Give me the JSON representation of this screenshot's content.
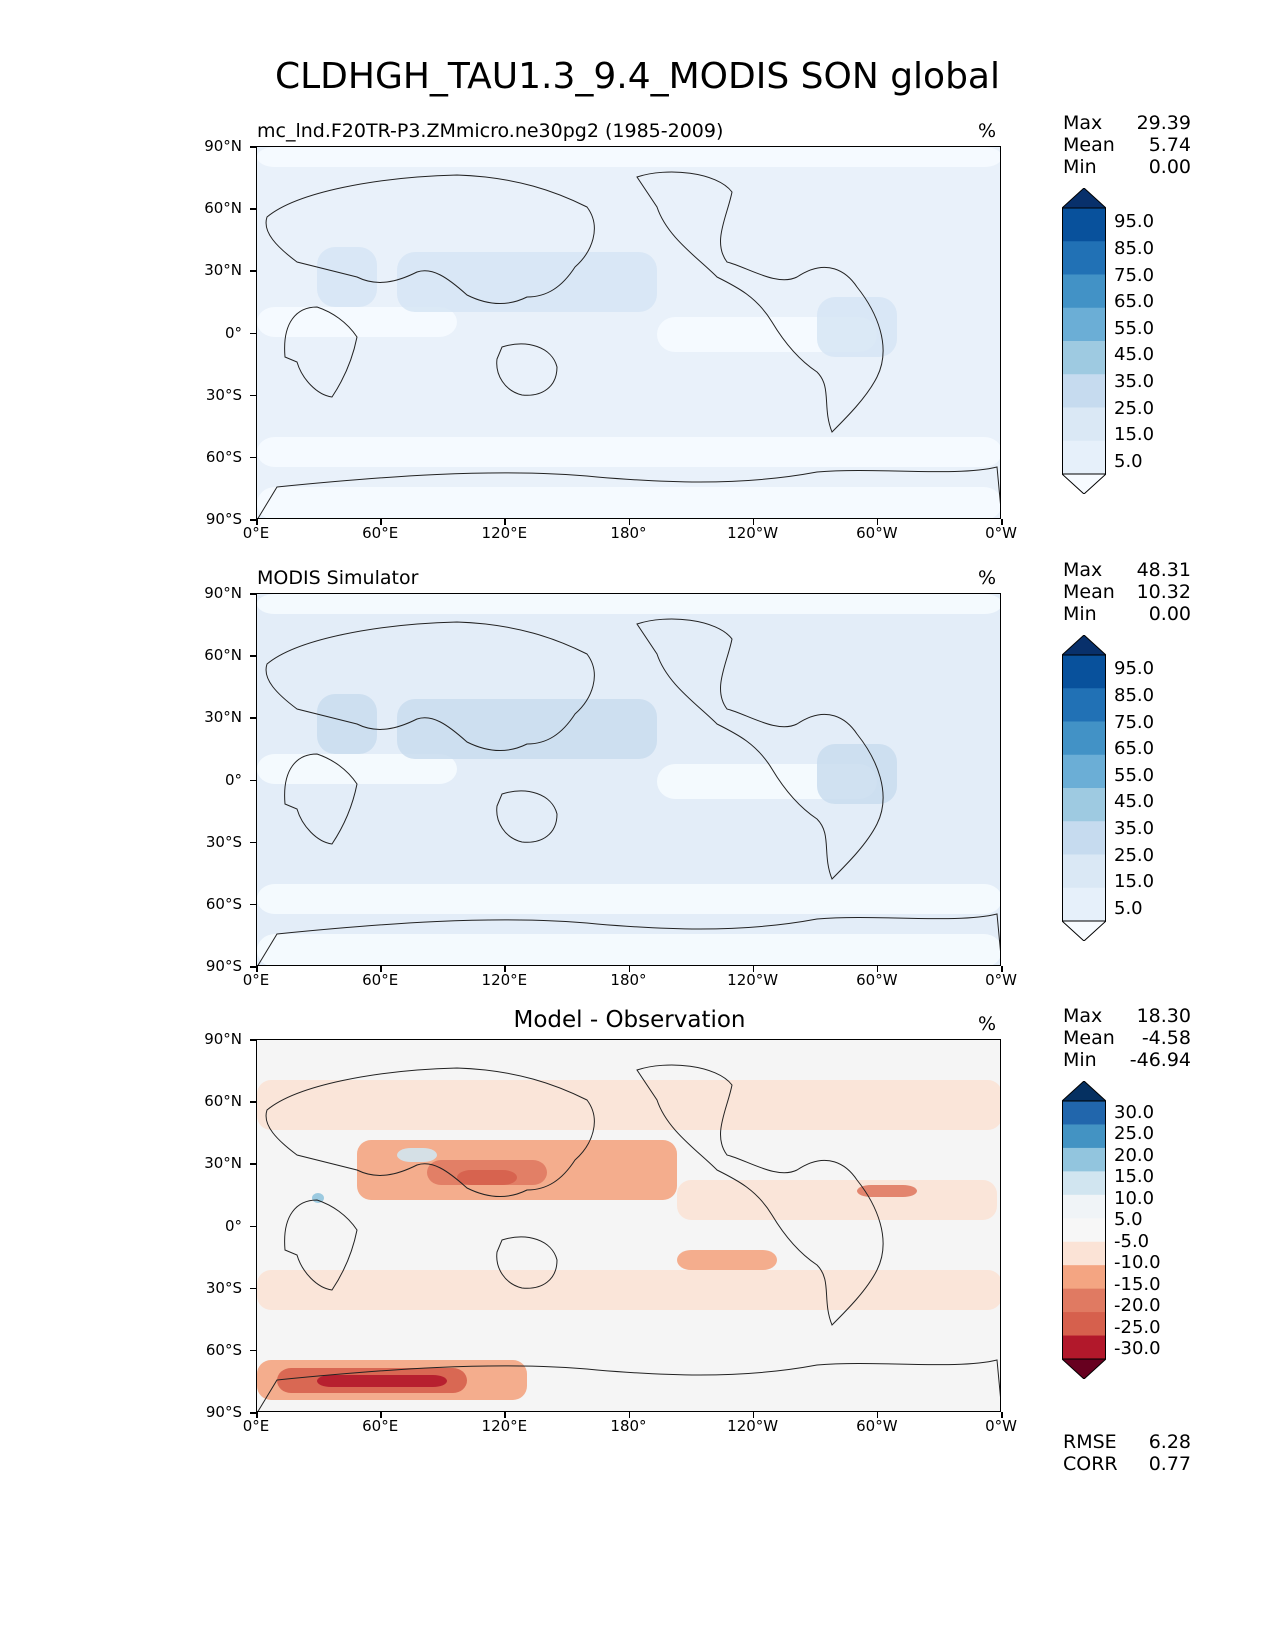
{
  "title": "CLDHGH_TAU1.3_9.4_MODIS SON global",
  "lat_labels": [
    "90°N",
    "60°N",
    "30°N",
    "0°",
    "30°S",
    "60°S",
    "90°S"
  ],
  "lon_labels": [
    "0°E",
    "60°E",
    "120°E",
    "180°",
    "120°W",
    "60°W",
    "0°W"
  ],
  "panels": [
    {
      "name": "model",
      "title_left": "mc_lnd.F20TR-P3.ZMmicro.ne30pg2 (1985-2009)",
      "title_center": "",
      "units": "%",
      "stats": [
        [
          "Max",
          "29.39"
        ],
        [
          "Mean",
          "5.74"
        ],
        [
          "Min",
          "0.00"
        ]
      ],
      "colorbar": {
        "labels": [
          "95.0",
          "85.0",
          "75.0",
          "65.0",
          "55.0",
          "45.0",
          "35.0",
          "25.0",
          "15.0",
          "5.0"
        ],
        "colors": [
          "#08306b",
          "#08519c",
          "#2171b5",
          "#4292c6",
          "#6baed6",
          "#9ecae1",
          "#c6dbef",
          "#dae8f5",
          "#e6f0fa",
          "#f7fbff"
        ]
      }
    },
    {
      "name": "obs",
      "title_left": "MODIS Simulator",
      "title_center": "",
      "units": "%",
      "stats": [
        [
          "Max",
          "48.31"
        ],
        [
          "Mean",
          "10.32"
        ],
        [
          "Min",
          "0.00"
        ]
      ],
      "colorbar": {
        "labels": [
          "95.0",
          "85.0",
          "75.0",
          "65.0",
          "55.0",
          "45.0",
          "35.0",
          "25.0",
          "15.0",
          "5.0"
        ],
        "colors": [
          "#08306b",
          "#08519c",
          "#2171b5",
          "#4292c6",
          "#6baed6",
          "#9ecae1",
          "#c6dbef",
          "#dae8f5",
          "#e6f0fa",
          "#f7fbff"
        ]
      }
    },
    {
      "name": "diff",
      "title_left": "",
      "title_center": "Model - Observation",
      "units": "%",
      "stats": [
        [
          "Max",
          "18.30"
        ],
        [
          "Mean",
          "-4.58"
        ],
        [
          "Min",
          "-46.94"
        ]
      ],
      "colorbar": {
        "labels": [
          "30.0",
          "25.0",
          "20.0",
          "15.0",
          "10.0",
          "5.0",
          "-5.0",
          "-10.0",
          "-15.0",
          "-20.0",
          "-25.0",
          "-30.0"
        ],
        "colors": [
          "#053061",
          "#2166ac",
          "#4393c3",
          "#92c5de",
          "#d1e5f0",
          "#f0f4f7",
          "#f7f7f7",
          "#fbe3d6",
          "#f4a582",
          "#e07a62",
          "#d6604d",
          "#b2182b",
          "#67001f"
        ]
      },
      "bottom_stats": [
        [
          "RMSE",
          "6.28"
        ],
        [
          "CORR",
          "0.77"
        ]
      ]
    }
  ]
}
